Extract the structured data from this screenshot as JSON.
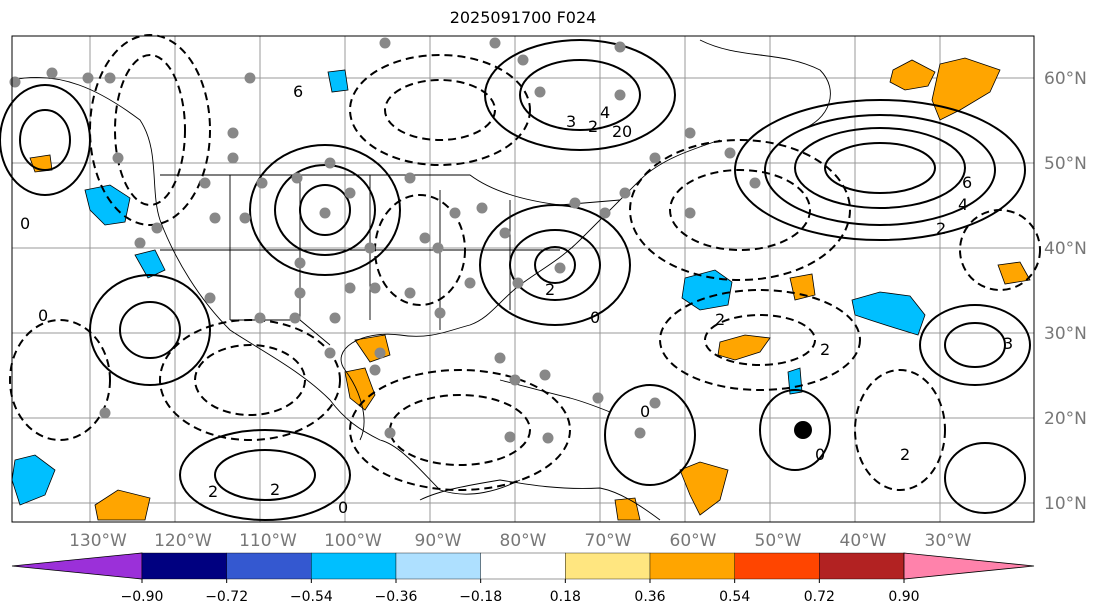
{
  "title": "2025091700 F024",
  "lon_labels": [
    "130°W",
    "120°W",
    "110°W",
    "100°W",
    "90°W",
    "80°W",
    "70°W",
    "60°W",
    "50°W",
    "40°W",
    "30°W"
  ],
  "lat_labels": [
    "60°N",
    "50°N",
    "40°N",
    "30°N",
    "20°N",
    "10°N"
  ],
  "colorbar": {
    "colors": [
      "#9b30d9",
      "#000080",
      "#3458d0",
      "#00bfff",
      "#aee0ff",
      "#ffffff",
      "#ffe680",
      "#ffa500",
      "#ff4500",
      "#b22222",
      "#ff82ab"
    ],
    "tick_labels": [
      "−0.90",
      "−0.72",
      "−0.54",
      "−0.36",
      "−0.18",
      "0.18",
      "0.36",
      "0.54",
      "0.72",
      "0.90"
    ]
  },
  "contour_labels": [
    "6",
    "4",
    "3",
    "2",
    "2",
    "0",
    "6",
    "4",
    "2",
    "0",
    "2",
    "0",
    "2",
    "2",
    "3",
    "0",
    "2",
    "0",
    "0",
    "0",
    "2",
    "2"
  ],
  "colors": {
    "positive": "#ffa500",
    "negative": "#00bfff",
    "dots": "#888888",
    "grid": "#999999",
    "axis_label": "#777777"
  }
}
